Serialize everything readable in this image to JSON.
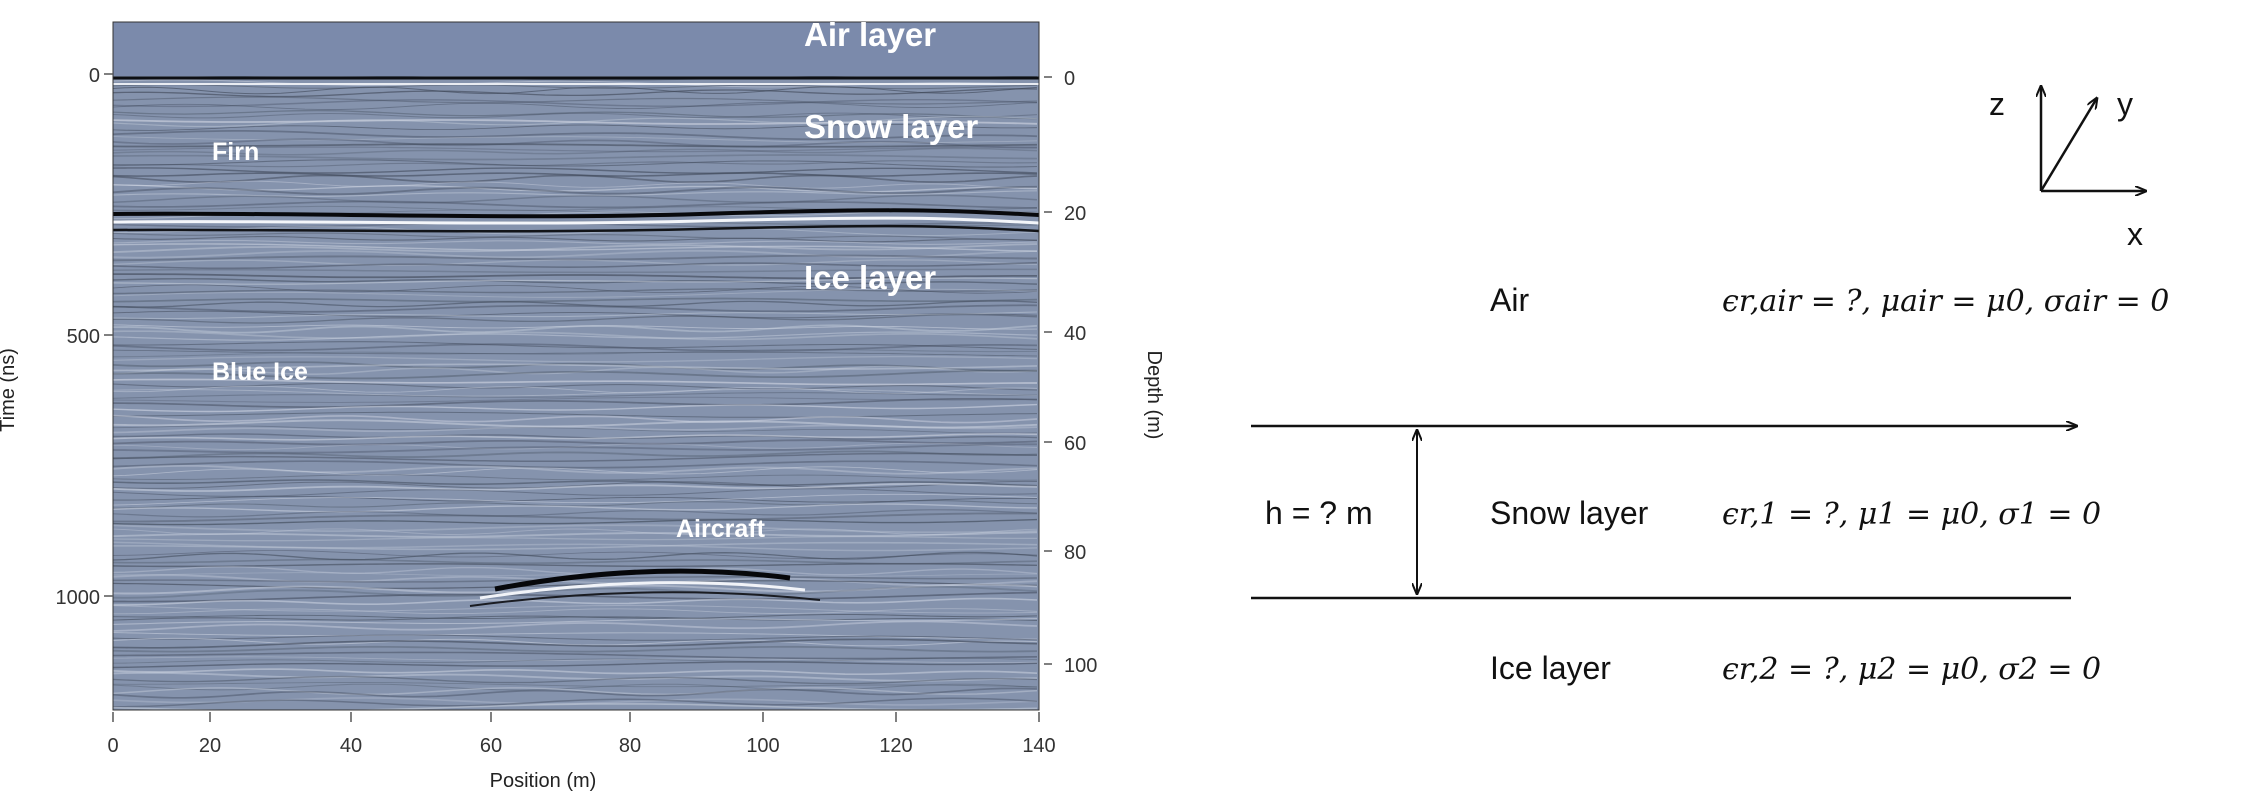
{
  "radargram": {
    "left_axis_label": "Time (ns)",
    "right_axis_label": "Depth (m)",
    "bottom_axis_label": "Position (m)",
    "left_ticks": [
      "0",
      "500",
      "1000"
    ],
    "right_ticks": [
      "0",
      "20",
      "40",
      "60",
      "80",
      "100"
    ],
    "bottom_ticks": [
      "0",
      "20",
      "40",
      "60",
      "80",
      "100",
      "120",
      "140"
    ],
    "labels": {
      "air_layer": "Air layer",
      "snow_layer": "Snow layer",
      "ice_layer": "Ice layer",
      "firn": "Firn",
      "blue_ice": "Blue Ice",
      "aircraft": "Aircraft"
    },
    "colors": {
      "background": "#8593ad",
      "air_band": "#7b8aab"
    }
  },
  "schematic": {
    "axes": {
      "z": "z",
      "y": "y",
      "x": "x"
    },
    "air": {
      "name": "Air",
      "props": "ϵr,air = ?, μair = μ0, σair = 0"
    },
    "snow": {
      "name": "Snow layer",
      "props": "ϵr,1 = ?, μ1 = μ0, σ1 = 0"
    },
    "ice": {
      "name": "Ice layer",
      "props": "ϵr,2 = ?, μ2 = μ0, σ2 = 0"
    },
    "thickness": "h = ? m"
  }
}
